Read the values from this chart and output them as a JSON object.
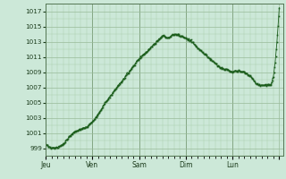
{
  "background_color": "#cce8d8",
  "plot_bg_color": "#cce8d8",
  "line_color": "#1a5c1a",
  "marker": "s",
  "marker_size": 1.2,
  "ylim": [
    998,
    1018
  ],
  "yticks": [
    999,
    1001,
    1003,
    1005,
    1007,
    1009,
    1011,
    1013,
    1015,
    1017
  ],
  "xtick_labels": [
    "Jeu",
    "Ven",
    "Sam",
    "Dim",
    "Lun",
    ""
  ],
  "grid_major_color": "#99bb99",
  "grid_minor_color": "#aaccaa",
  "ctrl_hours": [
    0,
    3,
    6,
    9,
    12,
    15,
    18,
    21,
    24,
    27,
    30,
    33,
    36,
    39,
    42,
    45,
    48,
    51,
    54,
    57,
    60,
    63,
    66,
    69,
    72,
    75,
    78,
    81,
    84,
    87,
    90,
    93,
    96,
    99,
    102,
    105,
    108,
    110,
    112,
    114,
    116,
    117,
    118,
    119,
    120
  ],
  "ctrl_pressure": [
    999.5,
    999.0,
    999.1,
    999.5,
    1000.5,
    1001.2,
    1001.5,
    1001.8,
    1002.5,
    1003.5,
    1004.8,
    1005.8,
    1006.8,
    1007.8,
    1008.8,
    1009.8,
    1010.8,
    1011.5,
    1012.2,
    1013.0,
    1013.8,
    1013.5,
    1014.0,
    1013.8,
    1013.5,
    1013.0,
    1012.2,
    1011.5,
    1010.8,
    1010.2,
    1009.5,
    1009.3,
    1009.0,
    1009.2,
    1009.0,
    1008.5,
    1007.5,
    1007.3,
    1007.2,
    1007.3,
    1007.5,
    1008.5,
    1010.5,
    1013.5,
    1017.5
  ]
}
